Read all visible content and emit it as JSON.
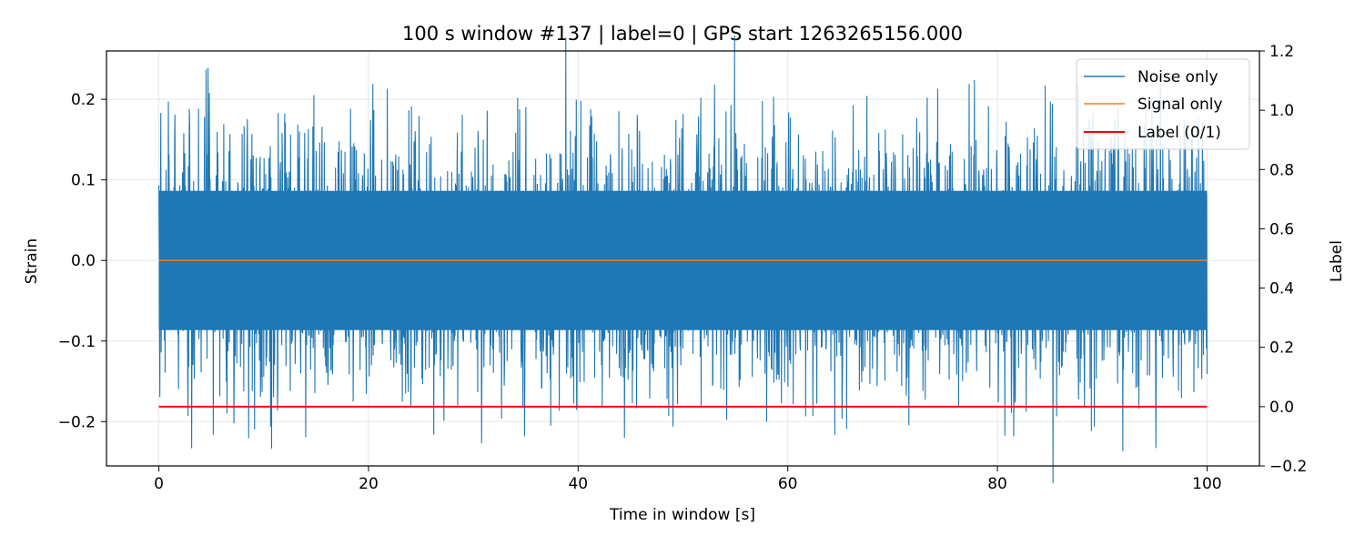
{
  "chart_data": {
    "type": "line",
    "title": "100 s window #137 | label=0 | GPS start 1263265156.000",
    "xlabel": "Time in window [s]",
    "ylabel": "Strain",
    "y2label": "Label",
    "xlim": [
      -5,
      105
    ],
    "ylim": [
      -0.255,
      0.26
    ],
    "y2lim": [
      -0.2,
      1.2
    ],
    "xticks": [
      0,
      20,
      40,
      60,
      80,
      100
    ],
    "xtick_labels": [
      "0",
      "20",
      "40",
      "60",
      "80",
      "100"
    ],
    "yticks": [
      -0.2,
      -0.1,
      0.0,
      0.1,
      0.2
    ],
    "ytick_labels": [
      "−0.2",
      "−0.1",
      "0.0",
      "0.1",
      "0.2"
    ],
    "y2ticks": [
      -0.2,
      0.0,
      0.2,
      0.4,
      0.6,
      0.8,
      1.0,
      1.2
    ],
    "y2tick_labels": [
      "−0.2",
      "0.0",
      "0.2",
      "0.4",
      "0.6",
      "0.8",
      "1.0",
      "1.2"
    ],
    "grid": true,
    "legend_position": "top-right",
    "series": [
      {
        "name": "Noise only",
        "color": "#1f77b4",
        "axis": "left",
        "description": "dense noise, mostly between -0.12 and 0.12",
        "x_range": [
          0,
          100
        ],
        "envelope": [
          -0.12,
          0.12
        ],
        "peaks": [
          {
            "x": 0.2,
            "y": 0.183
          },
          {
            "x": 4.5,
            "y": 0.237
          },
          {
            "x": 77.8,
            "y": 0.224
          },
          {
            "x": 30.8,
            "y": -0.227
          },
          {
            "x": 65.6,
            "y": -0.209
          },
          {
            "x": 37.4,
            "y": -0.205
          },
          {
            "x": 27.2,
            "y": -0.199
          },
          {
            "x": 6.5,
            "y": -0.19
          },
          {
            "x": 62.4,
            "y": -0.193
          },
          {
            "x": 94.2,
            "y": 0.186
          },
          {
            "x": 91.2,
            "y": 0.175
          }
        ]
      },
      {
        "name": "Signal only",
        "color": "#ff7f0e",
        "axis": "left",
        "x": [
          0,
          100
        ],
        "y": [
          0.0,
          0.0
        ]
      },
      {
        "name": "Label (0/1)",
        "color": "#ff0000",
        "axis": "right",
        "x": [
          0,
          100
        ],
        "y": [
          0,
          0
        ]
      }
    ]
  }
}
